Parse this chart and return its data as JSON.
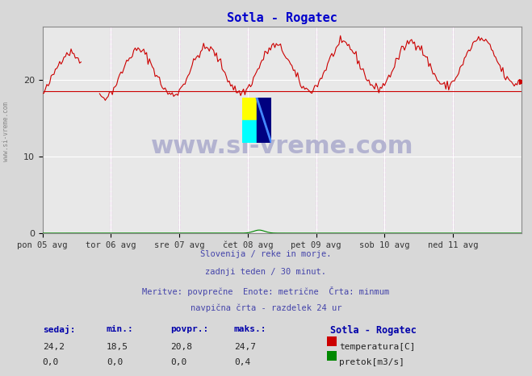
{
  "title": "Sotla - Rogatec",
  "title_color": "#0000cc",
  "bg_color": "#d8d8d8",
  "plot_bg_color": "#e8e8e8",
  "grid_color": "#ffffff",
  "border_color": "#888888",
  "x_tick_labels": [
    "pon 05 avg",
    "tor 06 avg",
    "sre 07 avg",
    "čet 08 avg",
    "pet 09 avg",
    "sob 10 avg",
    "ned 11 avg"
  ],
  "x_tick_positions": [
    0,
    48,
    96,
    144,
    192,
    240,
    288
  ],
  "y_ticks": [
    0,
    10,
    20
  ],
  "ylim": [
    0,
    27
  ],
  "xlim": [
    0,
    336
  ],
  "hline_y": 18.5,
  "hline_color": "#cc0000",
  "vline_positions": [
    48,
    96,
    144,
    192,
    240,
    288
  ],
  "vline_color": "#ff00ff",
  "temp_color": "#cc0000",
  "flow_color": "#008800",
  "watermark_text": "www.si-vreme.com",
  "watermark_color": "#aaaacc",
  "subtitle_lines": [
    "Slovenija / reke in morje.",
    "zadnji teden / 30 minut.",
    "Meritve: povprečne  Enote: metrične  Črta: minmum",
    "navpična črta - razdelek 24 ur"
  ],
  "subtitle_color": "#4444aa",
  "legend_title": "Sotla - Rogatec",
  "legend_color": "#0000aa",
  "stats_labels": [
    "sedaj:",
    "min.:",
    "povpr.:",
    "maks.:"
  ],
  "stats_temp": [
    24.2,
    18.5,
    20.8,
    24.7
  ],
  "stats_flow": [
    0.0,
    0.0,
    0.0,
    0.4
  ],
  "temp_label": "temperatura[C]",
  "flow_label": "pretok[m3/s]",
  "ylabel_text": "www.si-vreme.com",
  "num_points": 337
}
